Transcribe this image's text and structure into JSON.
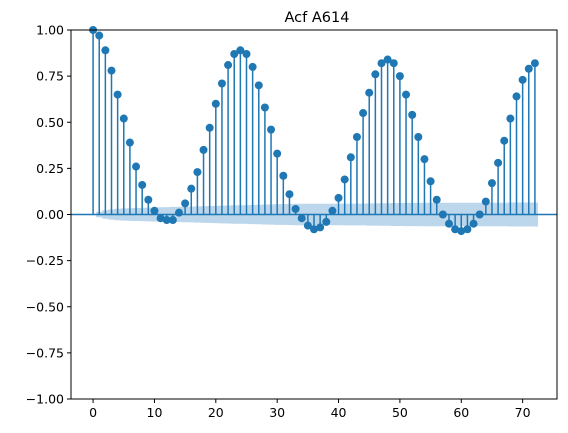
{
  "chart_data": {
    "type": "stem",
    "title": "Acf A614",
    "xlabel": "",
    "ylabel": "",
    "xlim": [
      -3.6,
      75.6
    ],
    "ylim": [
      -1.0,
      1.0
    ],
    "xticks": [
      0,
      10,
      20,
      30,
      40,
      50,
      60,
      70
    ],
    "xtick_labels": [
      "0",
      "10",
      "20",
      "30",
      "40",
      "50",
      "60",
      "70"
    ],
    "yticks": [
      -1.0,
      -0.75,
      -0.5,
      -0.25,
      0.0,
      0.25,
      0.5,
      0.75,
      1.0
    ],
    "ytick_labels": [
      "−1.00",
      "−0.75",
      "−0.50",
      "−0.25",
      "0.00",
      "0.25",
      "0.50",
      "0.75",
      "1.00"
    ],
    "grid": false,
    "colors": {
      "stem": "#1f77b4",
      "confidence_band": "#a6c8e4",
      "axis": "#000000"
    },
    "lags": [
      0,
      1,
      2,
      3,
      4,
      5,
      6,
      7,
      8,
      9,
      10,
      11,
      12,
      13,
      14,
      15,
      16,
      17,
      18,
      19,
      20,
      21,
      22,
      23,
      24,
      25,
      26,
      27,
      28,
      29,
      30,
      31,
      32,
      33,
      34,
      35,
      36,
      37,
      38,
      39,
      40,
      41,
      42,
      43,
      44,
      45,
      46,
      47,
      48,
      49,
      50,
      51,
      52,
      53,
      54,
      55,
      56,
      57,
      58,
      59,
      60,
      61,
      62,
      63,
      64,
      65,
      66,
      67,
      68,
      69,
      70,
      71,
      72
    ],
    "values": [
      1.0,
      0.97,
      0.89,
      0.78,
      0.65,
      0.52,
      0.39,
      0.26,
      0.16,
      0.08,
      0.02,
      -0.02,
      -0.03,
      -0.03,
      0.01,
      0.06,
      0.14,
      0.23,
      0.35,
      0.47,
      0.6,
      0.71,
      0.81,
      0.87,
      0.89,
      0.87,
      0.8,
      0.7,
      0.58,
      0.46,
      0.33,
      0.21,
      0.11,
      0.03,
      -0.02,
      -0.06,
      -0.08,
      -0.07,
      -0.04,
      0.02,
      0.09,
      0.19,
      0.31,
      0.42,
      0.55,
      0.66,
      0.76,
      0.82,
      0.84,
      0.82,
      0.75,
      0.65,
      0.54,
      0.42,
      0.3,
      0.18,
      0.08,
      0.0,
      -0.05,
      -0.08,
      -0.09,
      -0.08,
      -0.05,
      0.0,
      0.07,
      0.17,
      0.28,
      0.4,
      0.52,
      0.64,
      0.73,
      0.79,
      0.82
    ],
    "confidence_upper": [
      0.0,
      0.015,
      0.023,
      0.028,
      0.031,
      0.033,
      0.034,
      0.035,
      0.036,
      0.037,
      0.038,
      0.039,
      0.04,
      0.041,
      0.041,
      0.042,
      0.043,
      0.044,
      0.045,
      0.046,
      0.047,
      0.048,
      0.049,
      0.05,
      0.05,
      0.051,
      0.052,
      0.053,
      0.054,
      0.055,
      0.056,
      0.056,
      0.057,
      0.058,
      0.058,
      0.058,
      0.058,
      0.058,
      0.058,
      0.058,
      0.058,
      0.059,
      0.059,
      0.059,
      0.059,
      0.06,
      0.06,
      0.061,
      0.061,
      0.062,
      0.062,
      0.063,
      0.063,
      0.063,
      0.064,
      0.064,
      0.064,
      0.064,
      0.064,
      0.064,
      0.064,
      0.064,
      0.064,
      0.064,
      0.064,
      0.064,
      0.064,
      0.064,
      0.065,
      0.065,
      0.065,
      0.065,
      0.065
    ]
  }
}
